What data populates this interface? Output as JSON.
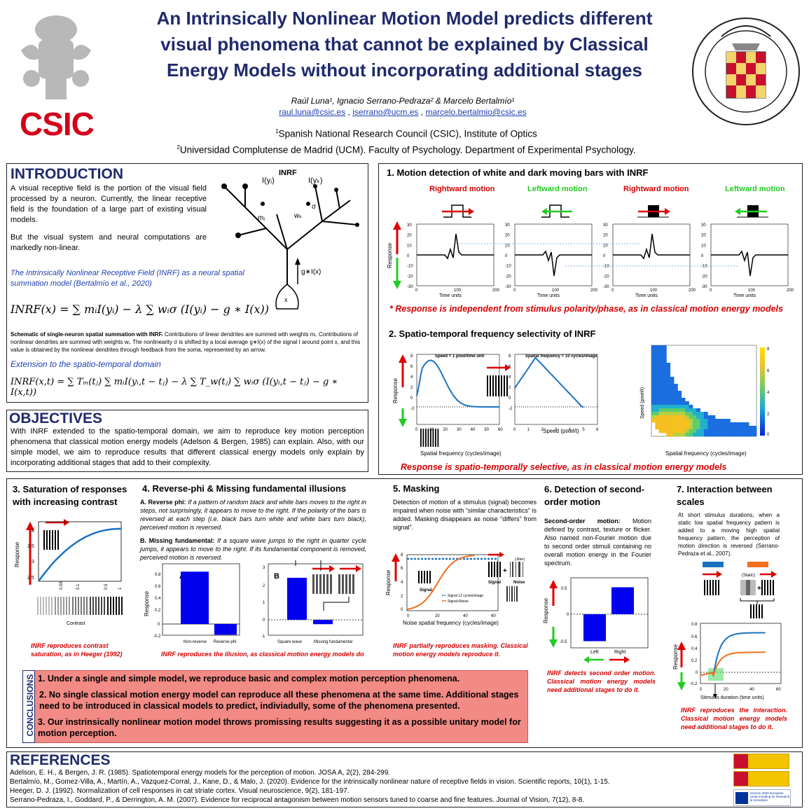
{
  "header": {
    "title_lines": [
      "An Intrinsically Nonlinear Motion Model predicts different",
      "visual phenomena that cannot be explained by Classical",
      "Energy Models without incorporating additional stages"
    ],
    "authors": "Raúl Luna¹, Ignacio Serrano-Pedraza² & Marcelo Bertalmío¹",
    "emails": [
      "raul.luna@csic.es",
      "iserrano@ucm.es",
      "marcelo.bertalmio@csic.es"
    ],
    "aff1": "Spanish National Research Council (CSIC), Institute of Optics",
    "aff2": "Universidad Complutense de Madrid (UCM). Faculty of Psychology. Department of Experimental Psychology.",
    "logo_csic": "CSIC",
    "seal_text": "UNIVERSITAS COMPLVTENSIS MATRITENSIS"
  },
  "intro": {
    "heading": "INTRODUCTION",
    "p1": "A visual receptive field is the portion of the visual field processed by a neuron. Currently, the linear receptive field is the foundation of a large part of existing visual models.",
    "p2": "But the visual system and neural computations are markedly non-linear.",
    "p3": "The Intrinsically Nonlinear Receptive Field (INRF) as a neural spatial summation model (Bertalmío et al., 2020)",
    "eq1": "INRF(x) = ∑ mᵢI(yᵢ) − λ ∑ wᵢσ (I(yᵢ) − g ∗ I(x))",
    "caption_bold": "Schematic of single-neuron spatial summation with INRF.",
    "caption": " Contributions of linear dendrites are summed with weights mᵢ. Contributions of nonlinear dendrites are summed with weights wᵢ. The nonlinearity σ is shifted by a local average g∗I(x) of the signal I around point x, and this value is obtained by the nonlinear dendrites through feedback from the soma, represented by an arrow.",
    "ext": "Extension to the spatio-temporal domain",
    "eq2": "INRF(x,t) = ∑ Tₘ(tⱼ) ∑ mᵢI(yᵢ,t − tⱼ) − λ ∑ T_w(tⱼ) ∑ wᵢσ (I(yᵢ,t − tⱼ) − g ∗ I(x,t))",
    "diagram": {
      "title": "INRF",
      "l1": "I(yⱼ)",
      "l2": "I(yₖ)",
      "l3": "σ",
      "l4": "mⱼ",
      "l5": "wₖ",
      "l6": "g∗I(x)",
      "l7": "x"
    }
  },
  "objectives": {
    "heading": "OBJECTIVES",
    "text": "With INRF extended to the spatio-temporal domain, we aim to reproduce key motion perception phenomena that classical motion energy models (Adelson & Bergen, 1985) can explain. Also, with our simple model, we aim to reproduce results that different classical energy models only explain by incorporating additional stages that add to their complexity."
  },
  "sec1": {
    "title": "1. Motion detection of white and dark moving bars with INRF",
    "labels": [
      "Rightward motion",
      "Leftward motion",
      "Rightward motion",
      "Leftward motion"
    ],
    "ylabel": "Response",
    "xlabel": "Time units",
    "yticks": [
      "30",
      "20",
      "10",
      "0",
      "-10",
      "-20",
      "-30"
    ],
    "xticks": [
      "0",
      "100",
      "200"
    ],
    "note": "* Response is independent from stimulus polarity/phase, as in classical motion energy models"
  },
  "sec2": {
    "title": "2. Spatio-temporal frequency selectivity of INRF",
    "ylabel": "Response",
    "p1_title": "Speed = 1 pixel/time unit",
    "p1_x": "Spatial frequency (cycles/image)",
    "p1_xticks": [
      "0",
      "10",
      "20",
      "30",
      "40",
      "50",
      "60"
    ],
    "p2_title": "Spatial frequency = 10 cycles/image",
    "p2_x": "Speed (pixel/t)",
    "p2_xticks": [
      "0",
      "1",
      "2",
      "3",
      "4",
      "5",
      "6"
    ],
    "heat_x": "Spatial frequency (cycles/image)",
    "heat_y": "Speed (pixel/t)",
    "heat_ticks": [
      "8",
      "6",
      "4",
      "2",
      "0"
    ],
    "note": "Response is spatio-temporally selective, as in classical motion energy models"
  },
  "sec3": {
    "title": "3. Saturation  of responses with increasing contrast",
    "ylabel": "Response",
    "xlabel": "Contrast",
    "yticks": [
      "4",
      "3.5",
      "3",
      "2.5"
    ],
    "xticks": [
      "0.05",
      "0.1",
      "0.5",
      "1"
    ],
    "note": "INRF reproduces contrast saturation, as in Heeger (1992)"
  },
  "sec4": {
    "title": "4. Reverse-phi & Missing fundamental illusions",
    "a_label": "A. Reverse phi:",
    "a_text": " If a pattern of random black and white bars moves to the right in steps, not surprisingly, it appears to move to the right. If the polarity of the bars is reversed at each step (i.e. black bars turn white and white bars turn black), perceived motion is reversed.",
    "b_label": "B. Missing fundamental:",
    "b_text": " If a square wave jumps to the right in quarter cycle jumps, it appears to move to the right. If its fundamental component is removed, perceived motion is reversed.",
    "ylabel": "Response",
    "chartA": {
      "label": "A",
      "cats": [
        "Non-reverse",
        "Reverse-phi"
      ]
    },
    "chartB": {
      "label": "B",
      "cats": [
        "Square wave",
        "Missing fundamental"
      ]
    },
    "note": "INRF reproduces the illusion, as classical motion energy models do"
  },
  "sec5": {
    "title": "5. Masking",
    "text": "Detection of motion of a stimulus (signal) becomes impaired when noise with “similar characteristics” is added. Masking disappears as noise “differs” from signal”.",
    "ylabel": "Response",
    "xlabel": "Noise spatial frequency (cycles/image)",
    "legend1": "Signal 12 cycles/image",
    "legend2": "Signal+Noise",
    "lab_signal": "Signal",
    "lab_noise": "Noise",
    "lab_jitter": "(Jitter)",
    "note": "INRF partially reproduces masking. Classical motion energy models reproduce it."
  },
  "sec6": {
    "title": "6. Detection of second-order motion",
    "bold": "Second-order motion:",
    "text": " Motion defined by contrast, texture or flicker. Also named non-Fourier motion due to second order stimuli containing no overall motion energy in the Fourier spectrum.",
    "ylabel": "Response",
    "cats": [
      "Left",
      "Right"
    ],
    "note": "INRF detects second order motion. Classical motion energy models need additional stages to do it."
  },
  "sec7": {
    "title": "7. Interaction between scales",
    "text": "At short stimulus durations, when a static low spatial frequency pattern is added to a moving high spatial frequency pattern, the perception of motion direction is reversed (Serrano-Pedraza et al., 2007).",
    "static": "(Static)",
    "ylabel": "Response",
    "xlabel": "Stimulus duration (time units)",
    "note": "INRF reproduces the interaction. Classical motion energy models need additional stages to do it."
  },
  "conclusions": {
    "side": "CONCLUSIONS",
    "items": [
      "1. Under a single and simple model, we reproduce basic and complex motion perception phenomena.",
      "2. No single classical motion energy model can reproduce all these phenomena at the same time. Additional stages need to be introduced in classical models to predict, indiviadully,  some of the phenomena presented.",
      "3. Our instrinsically nonlinear motion model throws promissing results suggesting it as a possible unitary model for motion perception."
    ]
  },
  "references": {
    "heading": "REFERENCES",
    "items": [
      "Adelson, E. H., & Bergen, J. R. (1985). Spatiotemporal energy models for the perception of motion. JOSA A, 2(2), 284-299.",
      "Bertalmío, M., Gomez-Villa, A., Martín, A., Vazquez-Corral, J., Kane, D., & Malo, J. (2020). Evidence for the intrinsically nonlinear nature of receptive fields in vision. Scientific reports, 10(1), 1-15.",
      "Heeger, D. J. (1992). Normalization of cell responses in cat striate cortex. Visual neuroscience, 9(2), 181-197.",
      "Serrano-Pedraza, I., Goddard, P., & Derrington, A. M. (2007). Evidence for reciprocal antagonism between motion sensors tuned to coarse and fine features. Journal of Vision, 7(12), 8-8."
    ],
    "eu_text": "Horizon 2020 European Union Funding for Research & Innovation"
  },
  "colors": {
    "title": "#1f2a6b",
    "red": "#d40000",
    "green": "#22cc22",
    "blue_bar": "#0000ee",
    "curve": "#1a73c0",
    "orange": "#f07020",
    "concl_bg": "#f28a85"
  }
}
